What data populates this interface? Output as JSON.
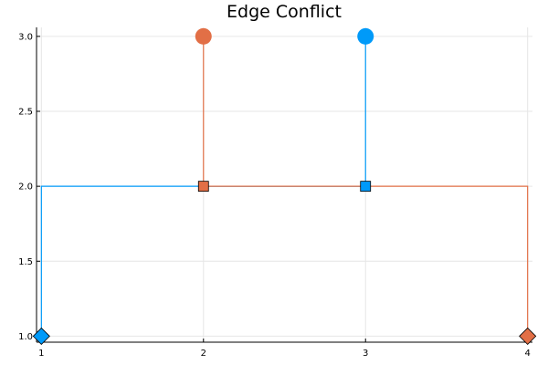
{
  "chart_data": {
    "type": "line",
    "title": "Edge Conflict",
    "xlabel": "",
    "ylabel": "",
    "xlim": [
      0.97,
      4.03
    ],
    "ylim": [
      0.96,
      3.06
    ],
    "x_ticks": [
      1,
      2,
      3,
      4
    ],
    "x_tick_labels": [
      "1",
      "2",
      "3",
      "4"
    ],
    "y_ticks": [
      1.0,
      1.5,
      2.0,
      2.5,
      3.0
    ],
    "y_tick_labels": [
      "1.0",
      "1.5",
      "2.0",
      "2.5",
      "3.0"
    ],
    "grid": true,
    "legend": "none",
    "series": [
      {
        "color": "#009af9",
        "path": [
          [
            1,
            1
          ],
          [
            1,
            2
          ],
          [
            3,
            2
          ],
          [
            3,
            3
          ]
        ],
        "markers": [
          {
            "x": 1,
            "y": 1,
            "shape": "diamond"
          },
          {
            "x": 3,
            "y": 2,
            "shape": "square"
          },
          {
            "x": 3,
            "y": 3,
            "shape": "circle"
          }
        ]
      },
      {
        "color": "#e26f46",
        "path": [
          [
            4,
            1
          ],
          [
            4,
            2
          ],
          [
            2,
            2
          ],
          [
            2,
            3
          ]
        ],
        "markers": [
          {
            "x": 4,
            "y": 1,
            "shape": "diamond"
          },
          {
            "x": 2,
            "y": 2,
            "shape": "square"
          },
          {
            "x": 2,
            "y": 3,
            "shape": "circle"
          }
        ]
      }
    ]
  }
}
